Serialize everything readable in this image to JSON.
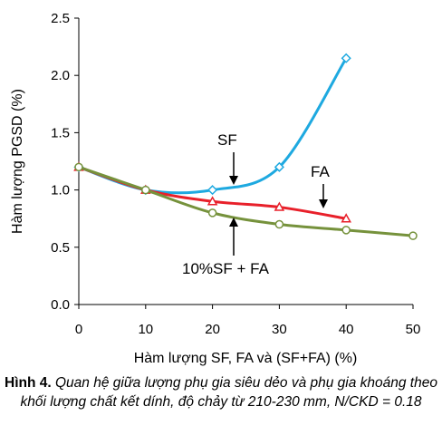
{
  "chart_data": {
    "type": "line",
    "xlabel": "Hàm lượng SF, FA và (SF+FA) (%)",
    "ylabel": "Hàm lượng PGSD (%)",
    "xlim": [
      0,
      50
    ],
    "ylim": [
      0,
      2.5
    ],
    "x_ticks": [
      "0",
      "10",
      "20",
      "30",
      "40",
      "50"
    ],
    "y_ticks": [
      "0.0",
      "0.5",
      "1.0",
      "1.5",
      "2.0",
      "2.5"
    ],
    "grid": false,
    "series": [
      {
        "name": "SF",
        "color": "#1ea9e0",
        "marker": "diamond",
        "x": [
          0,
          10,
          20,
          30,
          40
        ],
        "y": [
          1.2,
          1.0,
          1.0,
          1.2,
          2.15
        ]
      },
      {
        "name": "FA",
        "color": "#e8202a",
        "marker": "triangle",
        "x": [
          0,
          10,
          20,
          30,
          40
        ],
        "y": [
          1.2,
          1.0,
          0.9,
          0.85,
          0.75
        ]
      },
      {
        "name": "10%SF + FA",
        "color": "#76923c",
        "marker": "circle",
        "x": [
          0,
          10,
          20,
          30,
          40,
          50
        ],
        "y": [
          1.2,
          1.0,
          0.8,
          0.7,
          0.65,
          0.6
        ]
      }
    ]
  },
  "caption": {
    "lead": "Hình 4.",
    "text": " Quan hệ giữa lượng phụ gia siêu dẻo và phụ gia khoáng theo khối lượng chất kết dính, độ chảy từ 210-230 mm, N/CKD = 0.18"
  }
}
